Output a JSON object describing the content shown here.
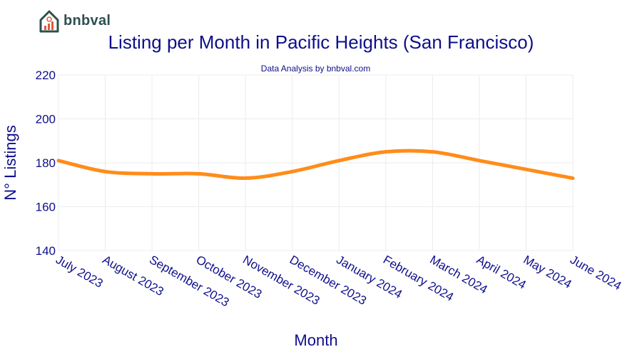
{
  "logo": {
    "text": "bnbval",
    "icon": "house-chart-icon"
  },
  "chart_data": {
    "type": "line",
    "title": "Listing per Month in Pacific Heights (San Francisco)",
    "subtitle": "Data Analysis by bnbval.com",
    "xlabel": "Month",
    "ylabel": "N° Listings",
    "categories": [
      "July 2023",
      "August 2023",
      "September 2023",
      "October 2023",
      "November 2023",
      "December 2023",
      "January 2024",
      "February 2024",
      "March 2024",
      "April 2024",
      "May 2024",
      "June 2024"
    ],
    "series": [
      {
        "values": [
          181,
          176,
          175,
          175,
          173,
          176,
          181,
          185,
          185,
          181,
          177,
          173
        ],
        "color": "#ff8c1a"
      }
    ],
    "ylim": [
      140,
      220
    ],
    "yticks": [
      140,
      160,
      180,
      200,
      220
    ],
    "grid": true,
    "legend": "none"
  },
  "colors": {
    "title": "#0e0e8c",
    "line": "#ff8c1a",
    "grid": "#ececec",
    "logo": "#2f4f4f",
    "logo_accent": "#e05a3a"
  }
}
